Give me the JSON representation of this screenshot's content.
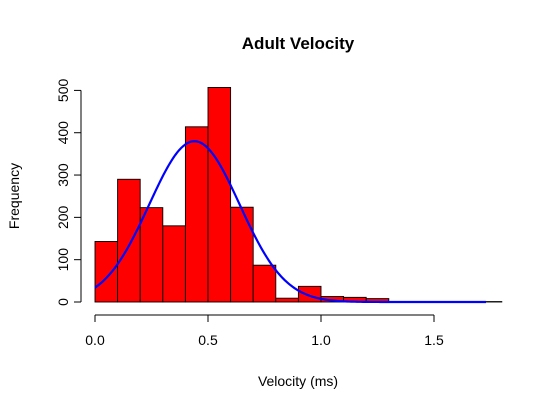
{
  "chart_data": {
    "type": "bar",
    "title": "Adult Velocity",
    "xlabel": "Velocity (ms)",
    "ylabel": "Frequency",
    "xlim": [
      0,
      1.8
    ],
    "ylim": [
      0,
      500
    ],
    "x_ticks": [
      0.0,
      0.5,
      1.0,
      1.5
    ],
    "x_tick_labels": [
      "0.0",
      "0.5",
      "1.0",
      "1.5"
    ],
    "y_ticks": [
      0,
      100,
      200,
      300,
      400,
      500
    ],
    "y_tick_labels": [
      "0",
      "100",
      "200",
      "300",
      "400",
      "500"
    ],
    "grid": false,
    "bins": [
      {
        "x0": 0.0,
        "x1": 0.1,
        "count": 143
      },
      {
        "x0": 0.1,
        "x1": 0.2,
        "count": 290
      },
      {
        "x0": 0.2,
        "x1": 0.3,
        "count": 223
      },
      {
        "x0": 0.3,
        "x1": 0.4,
        "count": 180
      },
      {
        "x0": 0.4,
        "x1": 0.5,
        "count": 414
      },
      {
        "x0": 0.5,
        "x1": 0.6,
        "count": 507
      },
      {
        "x0": 0.6,
        "x1": 0.7,
        "count": 224
      },
      {
        "x0": 0.7,
        "x1": 0.8,
        "count": 87
      },
      {
        "x0": 0.8,
        "x1": 0.9,
        "count": 9
      },
      {
        "x0": 0.9,
        "x1": 1.0,
        "count": 37
      },
      {
        "x0": 1.0,
        "x1": 1.1,
        "count": 13
      },
      {
        "x0": 1.1,
        "x1": 1.2,
        "count": 11
      },
      {
        "x0": 1.2,
        "x1": 1.3,
        "count": 8
      },
      {
        "x0": 1.3,
        "x1": 1.4,
        "count": 1
      },
      {
        "x0": 1.4,
        "x1": 1.5,
        "count": 0
      },
      {
        "x0": 1.5,
        "x1": 1.6,
        "count": 0
      },
      {
        "x0": 1.6,
        "x1": 1.7,
        "count": 0
      },
      {
        "x0": 1.7,
        "x1": 1.8,
        "count": 1
      }
    ],
    "density_curve": {
      "type": "normal",
      "mean": 0.44,
      "sd": 0.2,
      "peak": 380,
      "x_range": [
        0.0,
        1.73
      ]
    },
    "colors": {
      "bar_fill": "#ff0000",
      "bar_stroke": "#000000",
      "curve": "#0000ff"
    }
  }
}
